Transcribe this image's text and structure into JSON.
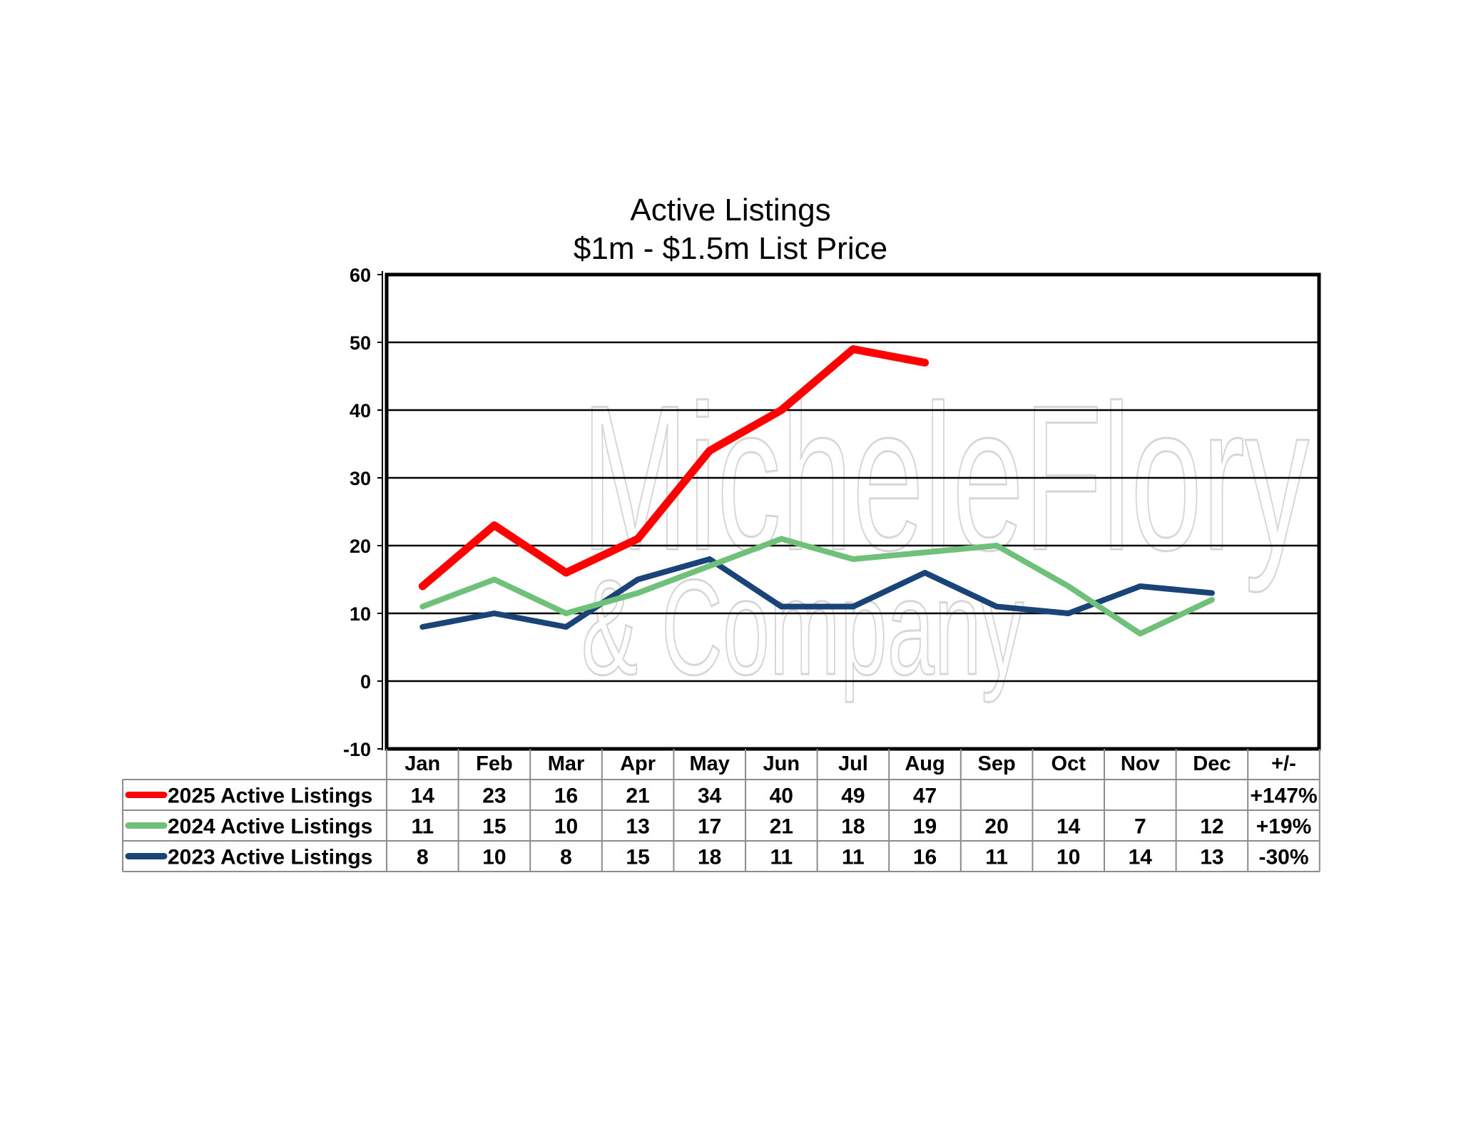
{
  "chart_data": {
    "type": "line",
    "title": "Active Listings",
    "subtitle": "$1m - $1.5m List Price",
    "categories": [
      "Jan",
      "Feb",
      "Mar",
      "Apr",
      "May",
      "Jun",
      "Jul",
      "Aug",
      "Sep",
      "Oct",
      "Nov",
      "Dec"
    ],
    "change_header": "+/-",
    "ylim": [
      -10,
      60
    ],
    "yticks": [
      "-10",
      "0",
      "10",
      "20",
      "30",
      "40",
      "50",
      "60"
    ],
    "ytick_values": [
      -10,
      0,
      10,
      20,
      30,
      40,
      50,
      60
    ],
    "grid": true,
    "legend": "data-table-below",
    "series": [
      {
        "name": "2025 Active Listings",
        "color": "#ff0000",
        "values": [
          14,
          23,
          16,
          21,
          34,
          40,
          49,
          47,
          null,
          null,
          null,
          null
        ],
        "change": "+147%"
      },
      {
        "name": "2024 Active Listings",
        "color": "#6fc17a",
        "values": [
          11,
          15,
          10,
          13,
          17,
          21,
          18,
          19,
          20,
          14,
          7,
          12
        ],
        "change": "+19%"
      },
      {
        "name": "2023 Active Listings",
        "color": "#1a4378",
        "values": [
          8,
          10,
          8,
          15,
          18,
          11,
          11,
          16,
          11,
          10,
          14,
          13
        ],
        "change": "-30%"
      }
    ]
  },
  "watermark": {
    "line1": "MicheleFlory",
    "line2": "& Company"
  }
}
